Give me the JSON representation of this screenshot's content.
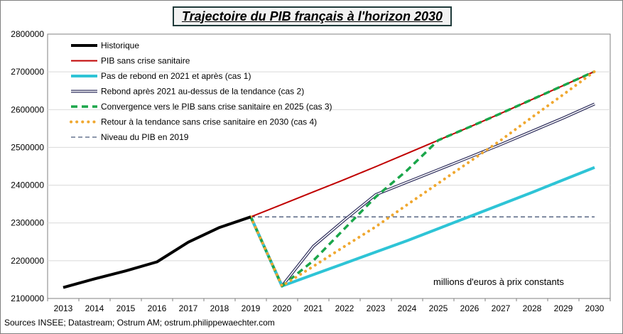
{
  "chart_data": {
    "type": "line",
    "title": "Trajectoire du PIB  français à l'horizon 2030",
    "annotation": "millions d'euros à prix constants",
    "source": "Sources INSEE; Datastream; Ostrum AM; ostrum.philippewaechter.com",
    "xlabel": "",
    "ylabel": "",
    "ylim": [
      2100000,
      2800000
    ],
    "yticks": [
      2100000,
      2200000,
      2300000,
      2400000,
      2500000,
      2600000,
      2700000,
      2800000
    ],
    "yticklabels": [
      "2100000",
      "2200000",
      "2300000",
      "2400000",
      "2500000",
      "2600000",
      "2700000",
      "2800000"
    ],
    "categories": [
      "2013",
      "2014",
      "2015",
      "2016",
      "2017",
      "2018",
      "2019",
      "2020",
      "2021",
      "2022",
      "2023",
      "2024",
      "2025",
      "2026",
      "2027",
      "2028",
      "2029",
      "2030"
    ],
    "legend_position": "top-left",
    "series": [
      {
        "name": "Historique",
        "color": "#000000",
        "style": "solid-thick",
        "values": [
          2129000,
          2152000,
          2173000,
          2197000,
          2249000,
          2288000,
          2316000,
          null,
          null,
          null,
          null,
          null,
          null,
          null,
          null,
          null,
          null,
          null
        ]
      },
      {
        "name": "PIB sans crise sanitaire",
        "color": "#c00000",
        "style": "solid",
        "values": [
          null,
          null,
          null,
          null,
          null,
          null,
          2316000,
          2349000,
          2382000,
          2415000,
          2449000,
          2484000,
          2519000,
          2554000,
          2590000,
          2627000,
          2664000,
          2701000
        ]
      },
      {
        "name": "Pas de rebond en 2021 et après (cas 1)",
        "color": "#2ec4d6",
        "style": "solid-thick",
        "values": [
          null,
          null,
          null,
          null,
          null,
          null,
          2316000,
          2133000,
          2163000,
          2193000,
          2223000,
          2253000,
          2285000,
          2317000,
          2349000,
          2381000,
          2414000,
          2447000
        ]
      },
      {
        "name": "Rebond après 2021 au-dessus de la tendance (cas 2)",
        "color": "#2e2e5c",
        "style": "double",
        "values": [
          null,
          null,
          null,
          null,
          null,
          null,
          2316000,
          2133000,
          2238000,
          2308000,
          2375000,
          2408000,
          2441000,
          2474000,
          2508000,
          2543000,
          2578000,
          2615000
        ]
      },
      {
        "name": "Convergence vers le PIB sans crise sanitaire en 2025 (cas 3)",
        "color": "#1aa64a",
        "style": "dashed",
        "values": [
          null,
          null,
          null,
          null,
          null,
          null,
          2316000,
          2133000,
          2200000,
          2285000,
          2369000,
          2439000,
          2519000,
          2554000,
          2590000,
          2627000,
          2664000,
          2701000
        ]
      },
      {
        "name": "Retour à la tendance sans crise sanitaire en 2030 (cas 4)",
        "color": "#f0a830",
        "style": "dotted",
        "values": [
          null,
          null,
          null,
          null,
          null,
          null,
          2316000,
          2133000,
          2185000,
          2238000,
          2290000,
          2348000,
          2405000,
          2462000,
          2519000,
          2580000,
          2640000,
          2701000
        ]
      },
      {
        "name": "Niveau du PIB en 2019",
        "color": "#4a5a7a",
        "style": "dashed-thin",
        "values": [
          null,
          null,
          null,
          null,
          null,
          null,
          2316000,
          2316000,
          2316000,
          2316000,
          2316000,
          2316000,
          2316000,
          2316000,
          2316000,
          2316000,
          2316000,
          2316000
        ]
      }
    ]
  }
}
